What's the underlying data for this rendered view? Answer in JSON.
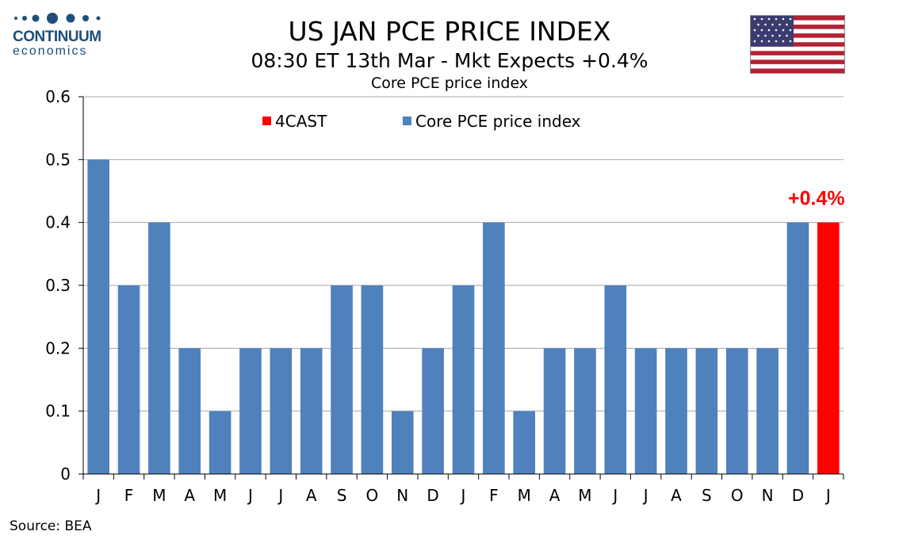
{
  "logo": {
    "name": "CONTINUUM",
    "tagline": "economics"
  },
  "header": {
    "title": "US JAN PCE PRICE INDEX",
    "subtitle": "08:30 ET 13th Mar - Mkt Expects +0.4%"
  },
  "colors": {
    "series": "#4f81bd",
    "forecast": "#ff0000",
    "brand": "#1f4e79"
  },
  "chart_data": {
    "type": "bar",
    "title": "Core PCE price index",
    "categories": [
      "J",
      "F",
      "M",
      "A",
      "M",
      "J",
      "J",
      "A",
      "S",
      "O",
      "N",
      "D",
      "J",
      "F",
      "M",
      "A",
      "M",
      "J",
      "J",
      "A",
      "S",
      "O",
      "N",
      "D",
      "J"
    ],
    "series": [
      {
        "name": "4CAST",
        "color": "#ff0000",
        "values": [
          null,
          null,
          null,
          null,
          null,
          null,
          null,
          null,
          null,
          null,
          null,
          null,
          null,
          null,
          null,
          null,
          null,
          null,
          null,
          null,
          null,
          null,
          null,
          null,
          0.4
        ]
      },
      {
        "name": "Core PCE price index",
        "color": "#4f81bd",
        "values": [
          0.5,
          0.3,
          0.4,
          0.2,
          0.1,
          0.2,
          0.2,
          0.2,
          0.3,
          0.3,
          0.1,
          0.2,
          0.3,
          0.4,
          0.1,
          0.2,
          0.2,
          0.3,
          0.2,
          0.2,
          0.2,
          0.2,
          0.2,
          0.4,
          null
        ]
      }
    ],
    "ylim": [
      0,
      0.6
    ],
    "yticks": [
      "0",
      "0.1",
      "0.2",
      "0.3",
      "0.4",
      "0.5",
      "0.6"
    ],
    "annotations": [
      {
        "text": "+0.4%",
        "category_index": 24,
        "value": 0.4,
        "color": "#ff0000"
      }
    ],
    "legend": "top-center",
    "grid": true,
    "xlabel": "",
    "ylabel": ""
  },
  "footer": {
    "source": "Source: BEA"
  }
}
